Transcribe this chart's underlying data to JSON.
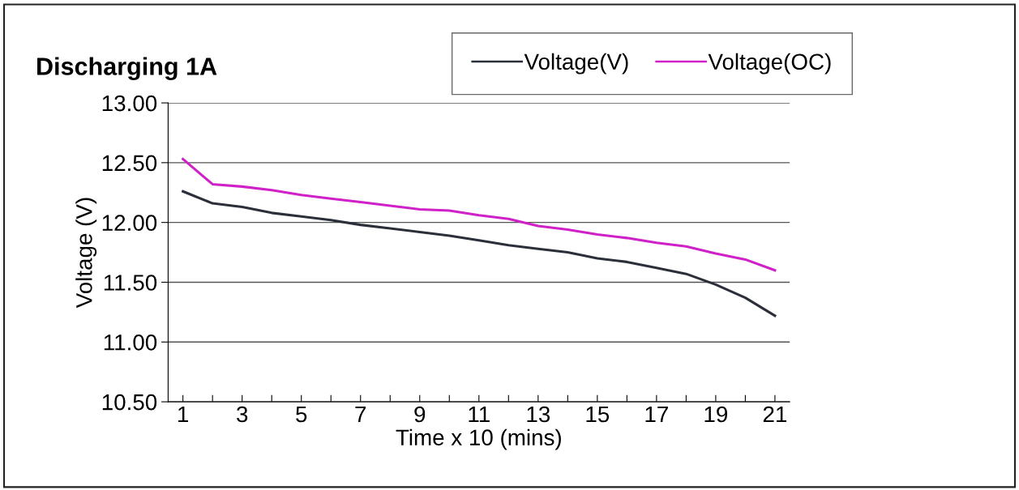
{
  "chart_data": {
    "type": "line",
    "title": "Discharging 1A",
    "xlabel": "Time x 10 (mins)",
    "ylabel": "Voltage (V)",
    "categories": [
      "1",
      null,
      "3",
      null,
      "5",
      null,
      "7",
      null,
      "9",
      null,
      "11",
      null,
      "13",
      null,
      "15",
      null,
      "17",
      null,
      "19",
      null,
      "21"
    ],
    "series": [
      {
        "name": "Voltage(V)",
        "color": "#2b2f3a",
        "values": [
          12.26,
          12.16,
          12.13,
          12.08,
          12.05,
          12.02,
          11.98,
          11.95,
          11.92,
          11.89,
          11.85,
          11.81,
          11.78,
          11.75,
          11.7,
          11.67,
          11.62,
          11.57,
          11.48,
          11.37,
          11.22
        ]
      },
      {
        "name": "Voltage(OC)",
        "color": "#d020c8",
        "values": [
          12.53,
          12.32,
          12.3,
          12.27,
          12.23,
          12.2,
          12.17,
          12.14,
          12.11,
          12.1,
          12.06,
          12.03,
          11.97,
          11.94,
          11.9,
          11.87,
          11.83,
          11.8,
          11.74,
          11.69,
          11.6
        ]
      }
    ],
    "ylim": [
      10.5,
      13.0
    ],
    "yticks": [
      {
        "value": 10.5,
        "label": "10.50"
      },
      {
        "value": 11.0,
        "label": "11.00"
      },
      {
        "value": 11.5,
        "label": "11.50"
      },
      {
        "value": 12.0,
        "label": "12.00"
      },
      {
        "value": 12.5,
        "label": "12.50"
      },
      {
        "value": 13.0,
        "label": "13.00"
      }
    ],
    "grid": "y",
    "legend": "top",
    "marker": "none",
    "line_style": "solid"
  }
}
